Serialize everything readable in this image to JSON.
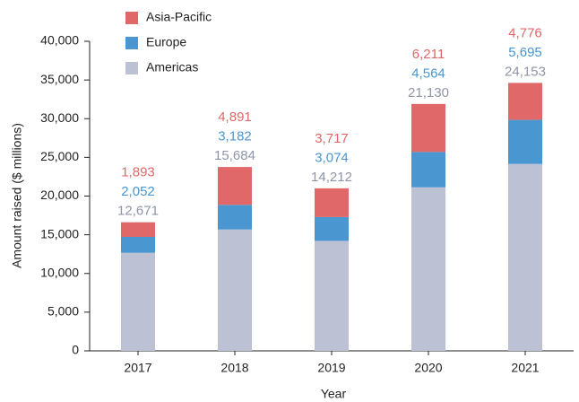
{
  "chart_data": {
    "type": "stacked_bar",
    "x_label": "Year",
    "y_label": "Amount raised ($ millions)",
    "categories": [
      "2017",
      "2018",
      "2019",
      "2020",
      "2021"
    ],
    "series": [
      {
        "name": "Americas",
        "color": "#bcc1d3",
        "label_color": "#8f95a8",
        "values": [
          12671,
          15684,
          14212,
          21130,
          24153
        ],
        "value_labels": [
          "12,671",
          "15,684",
          "14,212",
          "21,130",
          "24,153"
        ]
      },
      {
        "name": "Europe",
        "color": "#4a96d1",
        "label_color": "#4a96d1",
        "values": [
          2052,
          3182,
          3074,
          4564,
          5695
        ],
        "value_labels": [
          "2,052",
          "3,182",
          "3,074",
          "4,564",
          "5,695"
        ]
      },
      {
        "name": "Asia-Pacific",
        "color": "#e06868",
        "label_color": "#e06868",
        "values": [
          1893,
          4891,
          3717,
          6211,
          4776
        ],
        "value_labels": [
          "1,893",
          "4,891",
          "3,717",
          "6,211",
          "4,776"
        ]
      }
    ],
    "ylim": [
      0,
      40000
    ],
    "yticks": [
      0,
      {
        "value": 5000,
        "label": "5,000"
      },
      {
        "value": 10000,
        "label": "10,000"
      },
      {
        "value": 15000,
        "label": "15,000"
      },
      {
        "value": 20000,
        "label": "20,000"
      },
      {
        "value": 25000,
        "label": "25,000"
      },
      {
        "value": 30000,
        "label": "30,000"
      },
      {
        "value": 35000,
        "label": "35,000"
      },
      {
        "value": 40000,
        "label": "40,000"
      }
    ],
    "legend": "upper left"
  }
}
